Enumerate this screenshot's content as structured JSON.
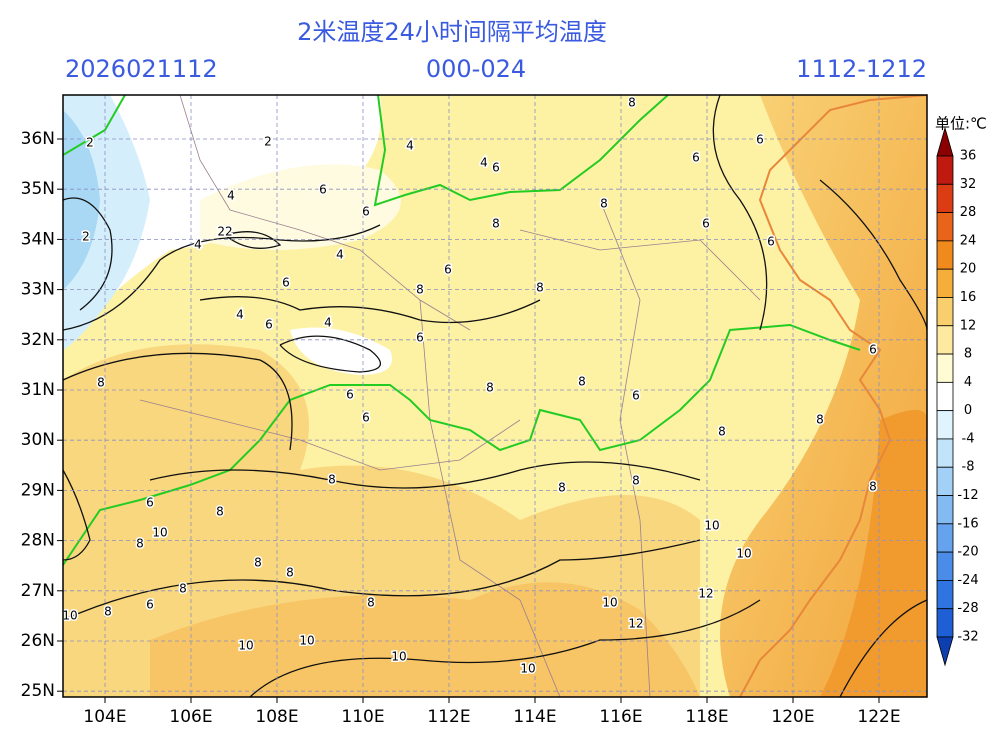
{
  "header": {
    "title": "2米温度24小时间隔平均温度",
    "init_time": "2026021112",
    "forecast_hours": "000-024",
    "valid_period": "1112-1212"
  },
  "map": {
    "lat_labels": [
      "36N",
      "35N",
      "34N",
      "33N",
      "32N",
      "31N",
      "30N",
      "29N",
      "28N",
      "27N",
      "26N",
      "25N"
    ],
    "lon_labels": [
      "104E",
      "106E",
      "108E",
      "110E",
      "112E",
      "114E",
      "116E",
      "118E",
      "120E",
      "122E"
    ],
    "contour_labels": [
      "8",
      "2",
      "4",
      "6",
      "6",
      "4",
      "6",
      "8",
      "8",
      "6",
      "8",
      "8",
      "6",
      "4",
      "6",
      "4",
      "6",
      "8",
      "8",
      "6",
      "6",
      "6",
      "8",
      "8",
      "8",
      "8",
      "10",
      "8",
      "8",
      "8",
      "8",
      "6",
      "8",
      "10",
      "8",
      "10",
      "12",
      "12",
      "10",
      "10",
      "10",
      "10",
      "10",
      "10",
      "8",
      "8",
      "6",
      "6",
      "6",
      "6",
      "8",
      "6",
      "8",
      "4",
      "22",
      "4",
      "4",
      "2",
      "2",
      "6"
    ]
  },
  "colorbar": {
    "unit": "单位:℃",
    "levels": [
      36,
      32,
      28,
      24,
      20,
      16,
      12,
      8,
      4,
      0,
      -4,
      -8,
      -12,
      -16,
      -20,
      -24,
      -28,
      -32
    ],
    "colors": [
      "#8b0000",
      "#c01a10",
      "#dc3c14",
      "#e8641a",
      "#f08a1c",
      "#f5ae3a",
      "#f9cf6e",
      "#fdeaa0",
      "#fffbd2",
      "#ffffff",
      "#e0f4fd",
      "#c2e4fa",
      "#a3d0f6",
      "#84baf2",
      "#66a3ee",
      "#4a8ce8",
      "#2f74e0",
      "#1e5fd6",
      "#0d3fb0"
    ]
  }
}
